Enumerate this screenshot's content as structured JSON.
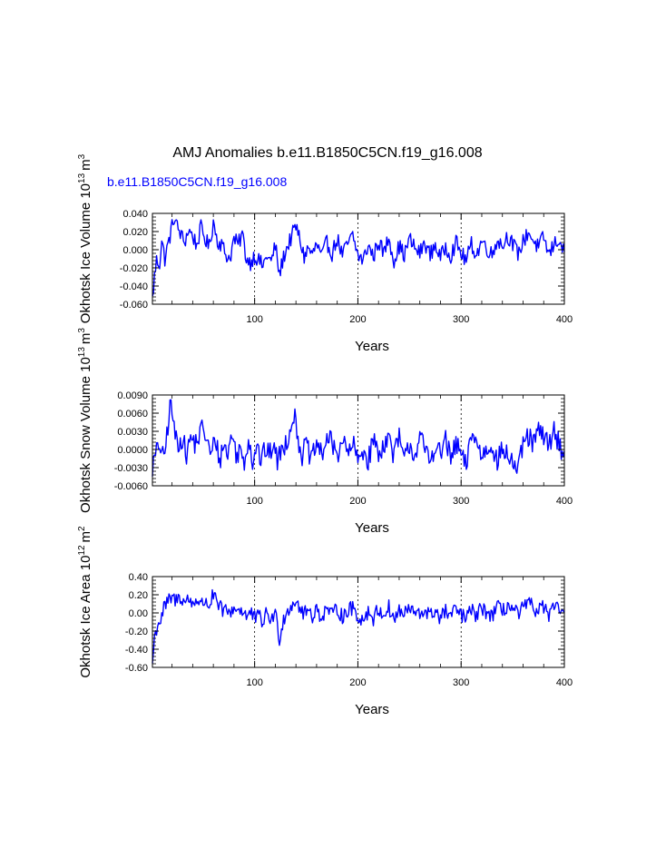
{
  "title": "AMJ Anomalies b.e11.B1850C5CN.f19_g16.008",
  "subtitle": "b.e11.B1850C5CN.f19_g16.008",
  "colors": {
    "series": "#0000ff",
    "subtitle": "#0000ff",
    "axis": "#000000"
  },
  "chart_data": [
    {
      "type": "line",
      "name": "ice-volume",
      "ylabel_main": "Okhotsk Ice Volume 10",
      "ylabel_exp": "13",
      "ylabel_unit": "m",
      "ylabel_unit_exp": "3",
      "xlabel": "Years",
      "xlim": [
        1,
        400
      ],
      "ylim": [
        -0.06,
        0.04
      ],
      "x_ticks": [
        100,
        200,
        300,
        400
      ],
      "x_tick_labels": [
        "100",
        "200",
        "300",
        "400"
      ],
      "y_ticks": [
        -0.06,
        -0.04,
        -0.02,
        0.0,
        0.02,
        0.04
      ],
      "y_tick_labels": [
        "-0.060",
        "-0.040",
        "-0.020",
        "0.000",
        "0.020",
        "0.040"
      ],
      "grid_x": [
        100,
        200,
        300
      ],
      "anchors": [
        [
          1,
          -0.055
        ],
        [
          3,
          -0.03
        ],
        [
          5,
          -0.012
        ],
        [
          8,
          -0.015
        ],
        [
          10,
          0.01
        ],
        [
          13,
          -0.01
        ],
        [
          16,
          0.005
        ],
        [
          19,
          0.02
        ],
        [
          22,
          0.036
        ],
        [
          25,
          0.025
        ],
        [
          28,
          0.018
        ],
        [
          32,
          0.008
        ],
        [
          36,
          0.022
        ],
        [
          40,
          0.015
        ],
        [
          44,
          0.005
        ],
        [
          48,
          0.024
        ],
        [
          52,
          0.012
        ],
        [
          56,
          0.003
        ],
        [
          60,
          0.031
        ],
        [
          64,
          0.01
        ],
        [
          68,
          0.006
        ],
        [
          72,
          -0.005
        ],
        [
          76,
          -0.01
        ],
        [
          80,
          0.012
        ],
        [
          84,
          0.005
        ],
        [
          88,
          0.018
        ],
        [
          92,
          -0.01
        ],
        [
          96,
          -0.014
        ],
        [
          100,
          -0.006
        ],
        [
          104,
          -0.012
        ],
        [
          108,
          -0.018
        ],
        [
          112,
          -0.006
        ],
        [
          116,
          -0.014
        ],
        [
          120,
          0.005
        ],
        [
          124,
          -0.028
        ],
        [
          128,
          -0.008
        ],
        [
          132,
          0.004
        ],
        [
          136,
          0.015
        ],
        [
          140,
          0.026
        ],
        [
          144,
          0.01
        ],
        [
          148,
          -0.008
        ],
        [
          152,
          0.002
        ],
        [
          156,
          -0.006
        ],
        [
          160,
          0.006
        ],
        [
          165,
          -0.008
        ],
        [
          170,
          0.008
        ],
        [
          175,
          -0.004
        ],
        [
          180,
          0.012
        ],
        [
          185,
          -0.006
        ],
        [
          190,
          0.006
        ],
        [
          195,
          0.015
        ],
        [
          200,
          -0.006
        ],
        [
          205,
          -0.012
        ],
        [
          210,
          0.005
        ],
        [
          215,
          -0.008
        ],
        [
          220,
          0.01
        ],
        [
          225,
          -0.004
        ],
        [
          230,
          0.014
        ],
        [
          235,
          -0.012
        ],
        [
          240,
          0.004
        ],
        [
          245,
          -0.006
        ],
        [
          250,
          0.012
        ],
        [
          255,
          0.002
        ],
        [
          260,
          -0.004
        ],
        [
          265,
          0.008
        ],
        [
          270,
          -0.006
        ],
        [
          275,
          0.006
        ],
        [
          280,
          -0.01
        ],
        [
          285,
          0.004
        ],
        [
          290,
          -0.006
        ],
        [
          295,
          0.008
        ],
        [
          300,
          -0.004
        ],
        [
          305,
          -0.012
        ],
        [
          310,
          0.006
        ],
        [
          315,
          -0.006
        ],
        [
          320,
          0.01
        ],
        [
          325,
          0.002
        ],
        [
          330,
          -0.006
        ],
        [
          335,
          0.012
        ],
        [
          340,
          0.004
        ],
        [
          345,
          0.016
        ],
        [
          350,
          0.006
        ],
        [
          355,
          -0.004
        ],
        [
          360,
          0.008
        ],
        [
          365,
          0.02
        ],
        [
          370,
          0.01
        ],
        [
          375,
          0.002
        ],
        [
          380,
          0.014
        ],
        [
          385,
          -0.006
        ],
        [
          390,
          0.006
        ],
        [
          395,
          0.012
        ],
        [
          400,
          -0.006
        ]
      ],
      "noise": 0.009
    },
    {
      "type": "line",
      "name": "snow-volume",
      "ylabel_main": "Okhotsk Snow Volume 10",
      "ylabel_exp": "13",
      "ylabel_unit": "m",
      "ylabel_unit_exp": "3",
      "xlabel": "Years",
      "xlim": [
        1,
        400
      ],
      "ylim": [
        -0.006,
        0.009
      ],
      "x_ticks": [
        100,
        200,
        300,
        400
      ],
      "x_tick_labels": [
        "100",
        "200",
        "300",
        "400"
      ],
      "y_ticks": [
        -0.006,
        -0.003,
        0.0,
        0.003,
        0.006,
        0.009
      ],
      "y_tick_labels": [
        "-0.0060",
        "-0.0030",
        "0.0000",
        "0.0030",
        "0.0060",
        "0.0090"
      ],
      "grid_x": [
        100,
        200,
        300
      ],
      "anchors": [
        [
          1,
          -0.003
        ],
        [
          4,
          -0.001
        ],
        [
          8,
          0.001
        ],
        [
          12,
          -0.002
        ],
        [
          16,
          0.004
        ],
        [
          19,
          0.008
        ],
        [
          22,
          0.003
        ],
        [
          26,
          0.001
        ],
        [
          30,
          0.002
        ],
        [
          34,
          -0.001
        ],
        [
          38,
          0.002
        ],
        [
          42,
          0.001
        ],
        [
          46,
          0.002
        ],
        [
          50,
          0.004
        ],
        [
          54,
          0.001
        ],
        [
          58,
          -0.001
        ],
        [
          62,
          0.002
        ],
        [
          66,
          -0.002
        ],
        [
          70,
          0.001
        ],
        [
          74,
          -0.001
        ],
        [
          78,
          0.003
        ],
        [
          82,
          -0.001
        ],
        [
          86,
          0.0
        ],
        [
          90,
          -0.002
        ],
        [
          94,
          0.002
        ],
        [
          98,
          -0.002
        ],
        [
          102,
          0.001
        ],
        [
          106,
          -0.002
        ],
        [
          110,
          0.0
        ],
        [
          114,
          -0.001
        ],
        [
          118,
          0.001
        ],
        [
          122,
          -0.002
        ],
        [
          126,
          0.0
        ],
        [
          130,
          0.001
        ],
        [
          134,
          0.003
        ],
        [
          138,
          0.006
        ],
        [
          142,
          0.002
        ],
        [
          146,
          -0.001
        ],
        [
          150,
          0.001
        ],
        [
          155,
          -0.002
        ],
        [
          160,
          0.001
        ],
        [
          165,
          -0.001
        ],
        [
          170,
          0.002
        ],
        [
          175,
          0.001
        ],
        [
          180,
          -0.001
        ],
        [
          185,
          0.002
        ],
        [
          190,
          -0.001
        ],
        [
          195,
          0.001
        ],
        [
          200,
          -0.002
        ],
        [
          205,
          0.0
        ],
        [
          210,
          -0.002
        ],
        [
          215,
          0.002
        ],
        [
          220,
          -0.001
        ],
        [
          225,
          0.001
        ],
        [
          230,
          0.002
        ],
        [
          235,
          -0.001
        ],
        [
          240,
          0.002
        ],
        [
          245,
          -0.002
        ],
        [
          250,
          0.001
        ],
        [
          255,
          -0.001
        ],
        [
          260,
          0.002
        ],
        [
          265,
          0.0
        ],
        [
          270,
          -0.002
        ],
        [
          275,
          0.001
        ],
        [
          280,
          -0.001
        ],
        [
          285,
          0.002
        ],
        [
          290,
          -0.002
        ],
        [
          295,
          0.001
        ],
        [
          300,
          -0.001
        ],
        [
          305,
          -0.003
        ],
        [
          310,
          0.003
        ],
        [
          315,
          0.001
        ],
        [
          320,
          -0.001
        ],
        [
          325,
          0.0
        ],
        [
          330,
          0.001
        ],
        [
          335,
          -0.002
        ],
        [
          340,
          0.0
        ],
        [
          345,
          -0.001
        ],
        [
          350,
          -0.002
        ],
        [
          355,
          -0.004
        ],
        [
          360,
          0.001
        ],
        [
          365,
          0.002
        ],
        [
          370,
          0.001
        ],
        [
          375,
          0.003
        ],
        [
          380,
          0.002
        ],
        [
          385,
          0.001
        ],
        [
          390,
          0.003
        ],
        [
          395,
          0.001
        ],
        [
          400,
          -0.001
        ]
      ],
      "noise": 0.0018
    },
    {
      "type": "line",
      "name": "ice-area",
      "ylabel_main": "Okhotsk Ice Area 10",
      "ylabel_exp": "12",
      "ylabel_unit": "m",
      "ylabel_unit_exp": "2",
      "xlabel": "Years",
      "xlim": [
        1,
        400
      ],
      "ylim": [
        -0.6,
        0.4
      ],
      "x_ticks": [
        100,
        200,
        300,
        400
      ],
      "x_tick_labels": [
        "100",
        "200",
        "300",
        "400"
      ],
      "y_ticks": [
        -0.6,
        -0.4,
        -0.2,
        0.0,
        0.2,
        0.4
      ],
      "y_tick_labels": [
        "-0.60",
        "-0.40",
        "-0.20",
        "0.00",
        "0.20",
        "0.40"
      ],
      "grid_x": [
        100,
        200,
        300
      ],
      "anchors": [
        [
          1,
          -0.55
        ],
        [
          3,
          -0.28
        ],
        [
          6,
          -0.12
        ],
        [
          9,
          -0.08
        ],
        [
          12,
          0.05
        ],
        [
          16,
          0.12
        ],
        [
          20,
          0.16
        ],
        [
          24,
          0.14
        ],
        [
          28,
          0.18
        ],
        [
          32,
          0.12
        ],
        [
          36,
          0.15
        ],
        [
          40,
          0.1
        ],
        [
          44,
          0.16
        ],
        [
          48,
          0.08
        ],
        [
          52,
          0.14
        ],
        [
          56,
          0.08
        ],
        [
          60,
          0.2
        ],
        [
          64,
          0.08
        ],
        [
          68,
          0.04
        ],
        [
          72,
          0.02
        ],
        [
          76,
          0.0
        ],
        [
          80,
          0.06
        ],
        [
          84,
          0.03
        ],
        [
          88,
          0.04
        ],
        [
          92,
          -0.04
        ],
        [
          96,
          0.0
        ],
        [
          100,
          -0.06
        ],
        [
          104,
          -0.04
        ],
        [
          108,
          -0.1
        ],
        [
          112,
          0.0
        ],
        [
          116,
          -0.08
        ],
        [
          120,
          0.0
        ],
        [
          124,
          -0.28
        ],
        [
          128,
          -0.06
        ],
        [
          132,
          0.02
        ],
        [
          136,
          0.1
        ],
        [
          140,
          0.14
        ],
        [
          144,
          0.05
        ],
        [
          148,
          -0.02
        ],
        [
          152,
          0.04
        ],
        [
          156,
          -0.03
        ],
        [
          160,
          0.04
        ],
        [
          165,
          -0.05
        ],
        [
          170,
          0.06
        ],
        [
          175,
          -0.03
        ],
        [
          180,
          0.05
        ],
        [
          185,
          -0.04
        ],
        [
          190,
          0.02
        ],
        [
          195,
          0.06
        ],
        [
          200,
          -0.04
        ],
        [
          205,
          -0.08
        ],
        [
          210,
          0.02
        ],
        [
          215,
          -0.06
        ],
        [
          220,
          0.04
        ],
        [
          225,
          -0.02
        ],
        [
          230,
          0.06
        ],
        [
          235,
          -0.08
        ],
        [
          240,
          0.03
        ],
        [
          245,
          -0.02
        ],
        [
          250,
          0.05
        ],
        [
          255,
          0.0
        ],
        [
          260,
          -0.03
        ],
        [
          265,
          0.04
        ],
        [
          270,
          -0.04
        ],
        [
          275,
          0.03
        ],
        [
          280,
          -0.06
        ],
        [
          285,
          0.02
        ],
        [
          290,
          -0.04
        ],
        [
          295,
          0.04
        ],
        [
          300,
          -0.02
        ],
        [
          305,
          -0.06
        ],
        [
          310,
          0.03
        ],
        [
          315,
          -0.03
        ],
        [
          320,
          0.05
        ],
        [
          325,
          0.01
        ],
        [
          330,
          -0.03
        ],
        [
          335,
          0.06
        ],
        [
          340,
          0.02
        ],
        [
          345,
          0.08
        ],
        [
          350,
          0.04
        ],
        [
          355,
          -0.02
        ],
        [
          360,
          0.05
        ],
        [
          365,
          0.1
        ],
        [
          370,
          0.06
        ],
        [
          375,
          0.02
        ],
        [
          380,
          0.08
        ],
        [
          385,
          -0.04
        ],
        [
          390,
          0.04
        ],
        [
          395,
          0.07
        ],
        [
          400,
          -0.03
        ]
      ],
      "noise": 0.085
    }
  ]
}
